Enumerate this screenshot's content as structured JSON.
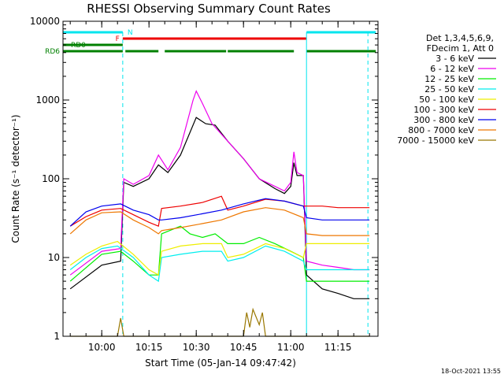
{
  "chart_data": {
    "type": "line",
    "title": "RHESSI Observing Summary Count Rates",
    "xlabel": "Start Time (05-Jan-14 09:47:42)",
    "ylabel": "Count Rate (s⁻¹ detector⁻¹)",
    "y_scale": "log",
    "ylim": [
      1,
      10000
    ],
    "xlim": [
      "09:47:42",
      "11:27:42"
    ],
    "x_ticks": [
      "10:00",
      "10:15",
      "10:30",
      "10:45",
      "11:00",
      "11:15"
    ],
    "y_ticks": [
      {
        "value": 1,
        "label": "1"
      },
      {
        "value": 10,
        "label": "10"
      },
      {
        "value": 100,
        "label": "100"
      },
      {
        "value": 1000,
        "label": "1000"
      },
      {
        "value": 10000,
        "label": "10000"
      }
    ],
    "legend_header": [
      "Det 1,3,4,5,6,9,",
      "FDecim 1, Att 0"
    ],
    "legend_placement": "right",
    "timestamp": "18-Oct-2021 13:55",
    "flags": [
      {
        "label": "N",
        "color": "#00e5ee",
        "segments": [
          [
            "09:47:42",
            "10:06:40"
          ],
          [
            "11:05:00",
            "11:27:00"
          ]
        ]
      },
      {
        "label": "F",
        "color": "#ee0000",
        "segments": [
          [
            "10:06:40",
            "11:05:00"
          ]
        ]
      },
      {
        "label": "RD0",
        "color": "#008000",
        "segments": [
          [
            "09:47:42",
            "10:06:40"
          ]
        ]
      },
      {
        "label": "RD6",
        "color": "#008000",
        "segments": [
          [
            "09:47:42",
            "10:06:40"
          ],
          [
            "10:07:30",
            "10:18:00"
          ],
          [
            "10:20:00",
            "10:39:30"
          ],
          [
            "10:40:00",
            "11:01:00"
          ],
          [
            "11:05:00",
            "11:27:00"
          ]
        ]
      }
    ],
    "night_boundaries": [
      "10:06:40",
      "11:24:30"
    ],
    "saa_boundaries": [
      "09:47:42",
      "11:05:00"
    ],
    "series": [
      {
        "name": "3 - 6 keV",
        "color": "#000000",
        "start": "09:50",
        "end": "11:25",
        "points": [
          [
            "09:50",
            4
          ],
          [
            "10:00",
            8
          ],
          [
            "10:06",
            9
          ],
          [
            "10:07",
            90
          ],
          [
            "10:10",
            80
          ],
          [
            "10:15",
            100
          ],
          [
            "10:18",
            150
          ],
          [
            "10:21",
            120
          ],
          [
            "10:25",
            200
          ],
          [
            "10:30",
            600
          ],
          [
            "10:33",
            500
          ],
          [
            "10:36",
            480
          ],
          [
            "10:40",
            300
          ],
          [
            "10:45",
            180
          ],
          [
            "10:50",
            100
          ],
          [
            "10:55",
            75
          ],
          [
            "10:58",
            65
          ],
          [
            "11:00",
            80
          ],
          [
            "11:01",
            160
          ],
          [
            "11:02",
            110
          ],
          [
            "11:04",
            110
          ],
          [
            "11:05",
            6
          ],
          [
            "11:10",
            4
          ],
          [
            "11:15",
            3.5
          ],
          [
            "11:20",
            3
          ],
          [
            "11:25",
            3
          ]
        ]
      },
      {
        "name": "6 - 12 keV",
        "color": "#ee00ee",
        "start": "09:50",
        "end": "11:25",
        "points": [
          [
            "09:50",
            6
          ],
          [
            "10:00",
            12
          ],
          [
            "10:06",
            13
          ],
          [
            "10:07",
            100
          ],
          [
            "10:10",
            85
          ],
          [
            "10:15",
            110
          ],
          [
            "10:18",
            200
          ],
          [
            "10:21",
            130
          ],
          [
            "10:25",
            250
          ],
          [
            "10:29",
            1000
          ],
          [
            "10:30",
            1300
          ],
          [
            "10:32",
            900
          ],
          [
            "10:35",
            500
          ],
          [
            "10:40",
            300
          ],
          [
            "10:45",
            180
          ],
          [
            "10:50",
            100
          ],
          [
            "10:55",
            80
          ],
          [
            "10:58",
            70
          ],
          [
            "11:00",
            90
          ],
          [
            "11:01",
            220
          ],
          [
            "11:02",
            120
          ],
          [
            "11:04",
            110
          ],
          [
            "11:05",
            9
          ],
          [
            "11:10",
            8
          ],
          [
            "11:15",
            7.5
          ],
          [
            "11:20",
            7
          ],
          [
            "11:25",
            7
          ]
        ]
      },
      {
        "name": "12 - 25 keV",
        "color": "#00ee00",
        "start": "09:50",
        "end": "11:25",
        "points": [
          [
            "09:50",
            5
          ],
          [
            "10:00",
            11
          ],
          [
            "10:06",
            12
          ],
          [
            "10:10",
            9
          ],
          [
            "10:15",
            6
          ],
          [
            "10:18",
            6
          ],
          [
            "10:19",
            20
          ],
          [
            "10:25",
            25
          ],
          [
            "10:28",
            20
          ],
          [
            "10:32",
            18
          ],
          [
            "10:36",
            20
          ],
          [
            "10:40",
            15
          ],
          [
            "10:45",
            15
          ],
          [
            "10:50",
            18
          ],
          [
            "10:55",
            15
          ],
          [
            "11:00",
            12
          ],
          [
            "11:04",
            10
          ],
          [
            "11:05",
            5
          ],
          [
            "11:10",
            5
          ],
          [
            "11:15",
            5
          ],
          [
            "11:20",
            5
          ],
          [
            "11:25",
            5
          ]
        ]
      },
      {
        "name": "25 - 50 keV",
        "color": "#00eeee",
        "start": "09:50",
        "end": "11:25",
        "points": [
          [
            "09:50",
            7
          ],
          [
            "09:55",
            10
          ],
          [
            "10:00",
            13
          ],
          [
            "10:05",
            14
          ],
          [
            "10:10",
            10
          ],
          [
            "10:15",
            6
          ],
          [
            "10:18",
            5
          ],
          [
            "10:19",
            10
          ],
          [
            "10:25",
            11
          ],
          [
            "10:32",
            12
          ],
          [
            "10:38",
            12
          ],
          [
            "10:40",
            9
          ],
          [
            "10:45",
            10
          ],
          [
            "10:52",
            14
          ],
          [
            "10:58",
            12
          ],
          [
            "11:04",
            9
          ],
          [
            "11:05",
            7
          ],
          [
            "11:10",
            7
          ],
          [
            "11:15",
            7
          ],
          [
            "11:20",
            7
          ],
          [
            "11:25",
            7
          ]
        ]
      },
      {
        "name": "50 - 100 keV",
        "color": "#eeee00",
        "start": "09:50",
        "end": "11:25",
        "points": [
          [
            "09:50",
            8
          ],
          [
            "09:55",
            11
          ],
          [
            "10:00",
            14
          ],
          [
            "10:05",
            16
          ],
          [
            "10:10",
            11
          ],
          [
            "10:15",
            7
          ],
          [
            "10:18",
            6
          ],
          [
            "10:19",
            12
          ],
          [
            "10:25",
            14
          ],
          [
            "10:32",
            15
          ],
          [
            "10:38",
            15
          ],
          [
            "10:40",
            10
          ],
          [
            "10:45",
            11
          ],
          [
            "10:52",
            15
          ],
          [
            "10:58",
            13
          ],
          [
            "11:04",
            10
          ],
          [
            "11:05",
            15
          ],
          [
            "11:10",
            15
          ],
          [
            "11:15",
            15
          ],
          [
            "11:20",
            15
          ],
          [
            "11:25",
            15
          ]
        ]
      },
      {
        "name": "100 - 300 keV",
        "color": "#ee0000",
        "start": "09:50",
        "end": "11:25",
        "points": [
          [
            "09:50",
            25
          ],
          [
            "09:55",
            33
          ],
          [
            "10:00",
            40
          ],
          [
            "10:06",
            42
          ],
          [
            "10:10",
            35
          ],
          [
            "10:15",
            28
          ],
          [
            "10:18",
            25
          ],
          [
            "10:19",
            42
          ],
          [
            "10:25",
            45
          ],
          [
            "10:32",
            50
          ],
          [
            "10:38",
            60
          ],
          [
            "10:40",
            40
          ],
          [
            "10:45",
            45
          ],
          [
            "10:52",
            55
          ],
          [
            "10:58",
            52
          ],
          [
            "11:04",
            45
          ],
          [
            "11:05",
            45
          ],
          [
            "11:10",
            45
          ],
          [
            "11:15",
            43
          ],
          [
            "11:20",
            43
          ],
          [
            "11:25",
            43
          ]
        ]
      },
      {
        "name": "300 - 800 keV",
        "color": "#0000ee",
        "start": "09:50",
        "end": "11:25",
        "points": [
          [
            "09:50",
            25
          ],
          [
            "09:55",
            38
          ],
          [
            "10:00",
            45
          ],
          [
            "10:06",
            48
          ],
          [
            "10:10",
            40
          ],
          [
            "10:15",
            35
          ],
          [
            "10:18",
            30
          ],
          [
            "10:19",
            30
          ],
          [
            "10:25",
            32
          ],
          [
            "10:32",
            36
          ],
          [
            "10:38",
            40
          ],
          [
            "10:45",
            48
          ],
          [
            "10:52",
            56
          ],
          [
            "10:58",
            52
          ],
          [
            "11:04",
            45
          ],
          [
            "11:05",
            32
          ],
          [
            "11:10",
            30
          ],
          [
            "11:15",
            30
          ],
          [
            "11:20",
            30
          ],
          [
            "11:25",
            30
          ]
        ]
      },
      {
        "name": "800 - 7000 keV",
        "color": "#ee7700",
        "start": "09:50",
        "end": "11:25",
        "points": [
          [
            "09:50",
            20
          ],
          [
            "09:55",
            30
          ],
          [
            "10:00",
            37
          ],
          [
            "10:06",
            38
          ],
          [
            "10:10",
            30
          ],
          [
            "10:15",
            24
          ],
          [
            "10:18",
            20
          ],
          [
            "10:19",
            22
          ],
          [
            "10:25",
            24
          ],
          [
            "10:32",
            27
          ],
          [
            "10:38",
            30
          ],
          [
            "10:45",
            38
          ],
          [
            "10:52",
            43
          ],
          [
            "10:58",
            40
          ],
          [
            "11:04",
            32
          ],
          [
            "11:05",
            20
          ],
          [
            "11:10",
            19
          ],
          [
            "11:15",
            19
          ],
          [
            "11:20",
            19
          ],
          [
            "11:25",
            19
          ]
        ]
      },
      {
        "name": "7000 - 15000 keV",
        "color": "#997700",
        "start": "09:50",
        "end": "11:25",
        "points": [
          [
            "09:50",
            1
          ],
          [
            "10:05",
            1
          ],
          [
            "10:06",
            1.7
          ],
          [
            "10:07",
            1
          ],
          [
            "10:45",
            1
          ],
          [
            "10:46",
            2
          ],
          [
            "10:47",
            1.3
          ],
          [
            "10:48",
            2.2
          ],
          [
            "10:50",
            1.4
          ],
          [
            "10:51",
            2
          ],
          [
            "10:52",
            1
          ],
          [
            "11:25",
            1
          ]
        ]
      }
    ]
  }
}
